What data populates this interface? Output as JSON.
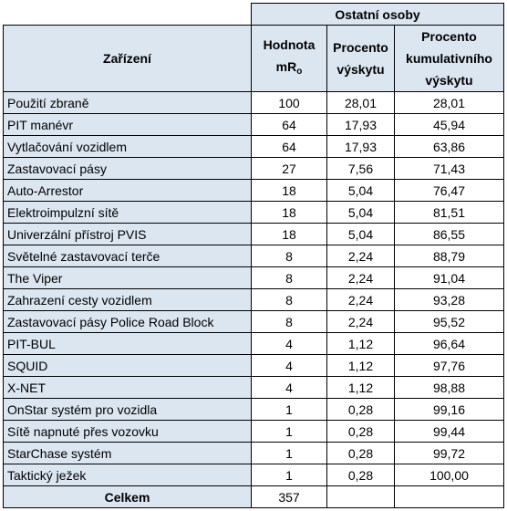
{
  "header": {
    "group": "Ostatní osoby",
    "device": "Zařízení",
    "value_line1": "Hodnota",
    "value_line2_main": "mR",
    "value_line2_sub": "o",
    "percent_line1": "Procento",
    "percent_line2": "výskytu",
    "cumulative_line1": "Procento",
    "cumulative_line2": "kumulativního",
    "cumulative_line3": "výskytu"
  },
  "rows": [
    {
      "name": "Použití zbraně",
      "value": "100",
      "percent": "28,01",
      "cumulative": "28,01"
    },
    {
      "name": "PIT manévr",
      "value": "64",
      "percent": "17,93",
      "cumulative": "45,94"
    },
    {
      "name": "Vytlačování vozidlem",
      "value": "64",
      "percent": "17,93",
      "cumulative": "63,86"
    },
    {
      "name": "Zastavovací pásy",
      "value": "27",
      "percent": "7,56",
      "cumulative": "71,43"
    },
    {
      "name": "Auto-Arrestor",
      "value": "18",
      "percent": "5,04",
      "cumulative": "76,47"
    },
    {
      "name": "Elektroimpulzní sítě",
      "value": "18",
      "percent": "5,04",
      "cumulative": "81,51"
    },
    {
      "name": "Univerzální přístroj PVIS",
      "value": "18",
      "percent": "5,04",
      "cumulative": "86,55"
    },
    {
      "name": "Světelné zastavovací terče",
      "value": "8",
      "percent": "2,24",
      "cumulative": "88,79"
    },
    {
      "name": "The Viper",
      "value": "8",
      "percent": "2,24",
      "cumulative": "91,04"
    },
    {
      "name": "Zahrazení cesty vozidlem",
      "value": "8",
      "percent": "2,24",
      "cumulative": "93,28"
    },
    {
      "name": "Zastavovací pásy Police Road Block",
      "value": "8",
      "percent": "2,24",
      "cumulative": "95,52"
    },
    {
      "name": "PIT-BUL",
      "value": "4",
      "percent": "1,12",
      "cumulative": "96,64"
    },
    {
      "name": "SQUID",
      "value": "4",
      "percent": "1,12",
      "cumulative": "97,76"
    },
    {
      "name": "X-NET",
      "value": "4",
      "percent": "1,12",
      "cumulative": "98,88"
    },
    {
      "name": "OnStar systém pro vozidla",
      "value": "1",
      "percent": "0,28",
      "cumulative": "99,16"
    },
    {
      "name": "Sítě napnuté přes vozovku",
      "value": "1",
      "percent": "0,28",
      "cumulative": "99,44"
    },
    {
      "name": "StarChase systém",
      "value": "1",
      "percent": "0,28",
      "cumulative": "99,72"
    },
    {
      "name": "Taktický ježek",
      "value": "1",
      "percent": "0,28",
      "cumulative": "100,00"
    }
  ],
  "total": {
    "label": "Celkem",
    "value": "357"
  },
  "colors": {
    "header_fill": "#dce6f1",
    "border": "#000000"
  }
}
